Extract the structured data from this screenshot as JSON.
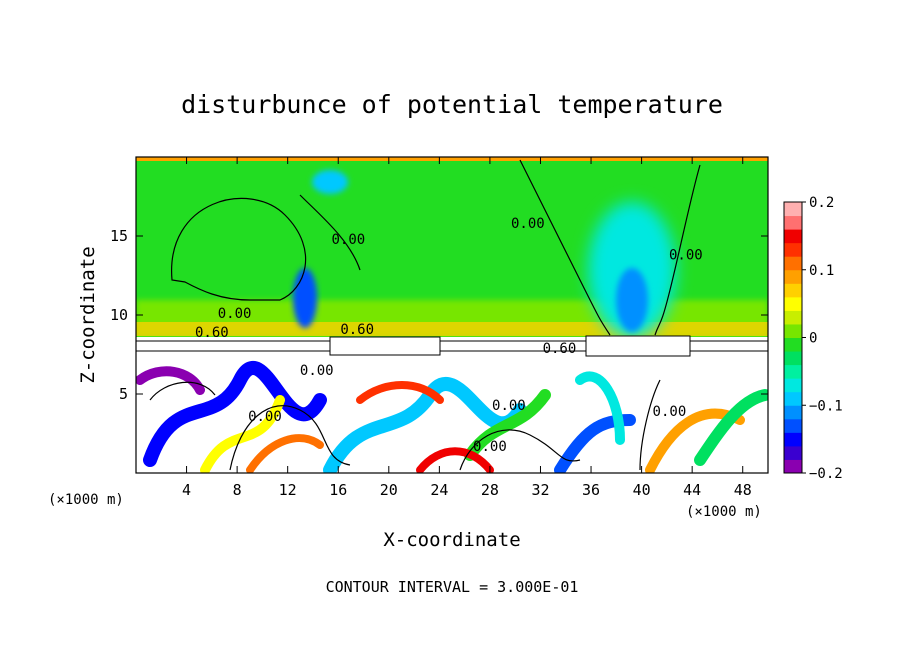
{
  "chart_data": {
    "type": "heatmap",
    "title": "disturbunce of potential temperature",
    "xlabel": "X-coordinate",
    "ylabel": "Z-coordinate",
    "x_unit": "(×1000 m)",
    "y_unit": "(×1000 m)",
    "xlim": [
      0,
      50
    ],
    "ylim": [
      0,
      20
    ],
    "x_ticks": [
      4,
      8,
      12,
      16,
      20,
      24,
      28,
      32,
      36,
      40,
      44,
      48
    ],
    "y_ticks": [
      5,
      10,
      15
    ],
    "colorbar": {
      "range": [
        -0.2,
        0.2
      ],
      "tick_values": [
        -0.2,
        -0.1,
        0,
        0.1,
        0.2
      ],
      "tick_labels": [
        "−0.2",
        "−0.1",
        "0",
        "0.1",
        "0.2"
      ],
      "colors": [
        "#8a00b0",
        "#3a00d0",
        "#0000ff",
        "#0050ff",
        "#0090ff",
        "#00c8ff",
        "#00e8e0",
        "#00f0a0",
        "#00e060",
        "#22dd22",
        "#77e600",
        "#c8ee00",
        "#ffff00",
        "#ffd000",
        "#ffa000",
        "#ff7000",
        "#ff3000",
        "#f00000",
        "#ff7070",
        "#ffb0b0"
      ]
    },
    "contour_labels": [
      {
        "text": "0.00",
        "x": 31.0,
        "z": 15.5
      },
      {
        "text": "0.00",
        "x": 16.8,
        "z": 14.5
      },
      {
        "text": "0.00",
        "x": 43.5,
        "z": 13.5
      },
      {
        "text": "0.00",
        "x": 7.8,
        "z": 9.8
      },
      {
        "text": "0.60",
        "x": 6.0,
        "z": 8.6
      },
      {
        "text": "0.60",
        "x": 17.5,
        "z": 8.8
      },
      {
        "text": "0.60",
        "x": 33.5,
        "z": 7.6
      },
      {
        "text": "0.00",
        "x": 14.3,
        "z": 6.2
      },
      {
        "text": "0.00",
        "x": 10.2,
        "z": 3.3
      },
      {
        "text": "0.00",
        "x": 28.0,
        "z": 1.4
      },
      {
        "text": "0.00",
        "x": 29.5,
        "z": 4.0
      },
      {
        "text": "0.00",
        "x": 42.2,
        "z": 3.6
      }
    ],
    "contour_interval_label": "CONTOUR INTERVAL = 3.000E-01"
  }
}
